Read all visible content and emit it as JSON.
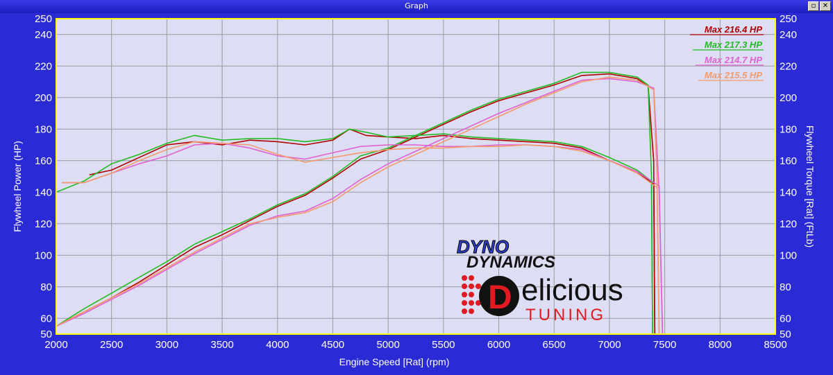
{
  "window": {
    "title": "Graph",
    "restore_glyph": "▫",
    "close_glyph": "✕"
  },
  "chart_data": {
    "type": "line",
    "xlabel": "Engine Speed [Rat] (rpm)",
    "ylabel_left": "Flywheel Power (HP)",
    "ylabel_right": "Flywheel Torque [Rat] (FtLb)",
    "xlim": [
      2000,
      8500
    ],
    "ylim": [
      50,
      250
    ],
    "x_ticks": [
      2000,
      2500,
      3000,
      3500,
      4000,
      4500,
      5000,
      5500,
      6000,
      6500,
      7000,
      7500,
      8000,
      8500
    ],
    "y_ticks": [
      50,
      60,
      80,
      100,
      120,
      140,
      160,
      180,
      200,
      220,
      240,
      250
    ],
    "grid": true,
    "legend_position": "top-right",
    "colors": {
      "plot_bg": "#ddddf3",
      "grid": "#9a9a9a",
      "frame": "#ffff00",
      "outer_bg": "#2b2bd6"
    },
    "series": [
      {
        "name": "Max 216.4 HP",
        "color": "#b00000",
        "power": {
          "x": [
            2000,
            2250,
            2500,
            2750,
            3000,
            3250,
            3500,
            3750,
            4000,
            4250,
            4500,
            4750,
            5000,
            5250,
            5500,
            5750,
            6000,
            6250,
            6500,
            6750,
            7000,
            7250,
            7350,
            7400,
            7410
          ],
          "y": [
            55,
            64,
            73,
            83,
            94,
            105,
            113,
            122,
            131,
            138,
            149,
            161,
            167,
            175,
            183,
            191,
            198,
            203,
            208,
            214,
            215,
            212,
            207,
            160,
            50
          ]
        },
        "torque": {
          "x": [
            2300,
            2500,
            2750,
            3000,
            3250,
            3500,
            3750,
            4000,
            4250,
            4500,
            4650,
            4800,
            5000,
            5250,
            5500,
            5750,
            6000,
            6250,
            6500,
            6750,
            7000,
            7250,
            7400,
            7410
          ],
          "y": [
            151,
            154,
            162,
            170,
            172,
            170,
            173,
            172,
            170,
            173,
            180,
            176,
            175,
            174,
            176,
            174,
            173,
            172,
            171,
            168,
            160,
            153,
            145,
            50
          ]
        }
      },
      {
        "name": "Max 217.3 HP",
        "color": "#22bb22",
        "power": {
          "x": [
            2000,
            2250,
            2500,
            2750,
            3000,
            3250,
            3500,
            3750,
            4000,
            4250,
            4500,
            4750,
            5000,
            5250,
            5500,
            5750,
            6000,
            6250,
            6500,
            6750,
            7000,
            7250,
            7350,
            7380,
            7390
          ],
          "y": [
            55,
            66,
            76,
            86,
            96,
            107,
            115,
            123,
            132,
            139,
            150,
            163,
            168,
            176,
            184,
            192,
            199,
            204,
            209,
            216,
            216,
            213,
            208,
            150,
            50
          ]
        },
        "torque": {
          "x": [
            2000,
            2250,
            2500,
            2750,
            3000,
            3250,
            3500,
            3750,
            4000,
            4250,
            4500,
            4650,
            4800,
            5000,
            5250,
            5500,
            5750,
            6000,
            6250,
            6500,
            6750,
            7000,
            7250,
            7380,
            7390
          ],
          "y": [
            140,
            147,
            158,
            164,
            171,
            176,
            173,
            174,
            174,
            172,
            174,
            180,
            178,
            175,
            176,
            177,
            175,
            174,
            173,
            172,
            169,
            162,
            154,
            147,
            50
          ]
        }
      },
      {
        "name": "Max 214.7 HP",
        "color": "#e060d0",
        "power": {
          "x": [
            2000,
            2250,
            2500,
            2750,
            3000,
            3250,
            3500,
            3750,
            4000,
            4250,
            4500,
            4750,
            5000,
            5250,
            5500,
            5750,
            6000,
            6250,
            6500,
            6750,
            7000,
            7250,
            7400,
            7450,
            7480
          ],
          "y": [
            55,
            63,
            72,
            81,
            91,
            101,
            110,
            119,
            125,
            128,
            136,
            148,
            158,
            166,
            174,
            182,
            190,
            197,
            204,
            211,
            212,
            210,
            206,
            140,
            50
          ]
        },
        "torque": {
          "x": [
            2050,
            2250,
            2500,
            2750,
            3000,
            3250,
            3500,
            3750,
            4000,
            4250,
            4500,
            4750,
            5000,
            5250,
            5500,
            5750,
            6000,
            6250,
            6500,
            6750,
            7000,
            7250,
            7450,
            7480
          ],
          "y": [
            146,
            146,
            152,
            158,
            163,
            170,
            171,
            168,
            163,
            161,
            165,
            169,
            170,
            170,
            169,
            169,
            170,
            170,
            169,
            167,
            160,
            153,
            144,
            50
          ]
        }
      },
      {
        "name": "Max 215.5 HP",
        "color": "#f59a6a",
        "power": {
          "x": [
            2000,
            2250,
            2500,
            2750,
            3000,
            3250,
            3500,
            3750,
            4000,
            4250,
            4500,
            4750,
            5000,
            5250,
            5500,
            5750,
            6000,
            6250,
            6500,
            6750,
            7000,
            7250,
            7400,
            7430,
            7450
          ],
          "y": [
            55,
            64,
            73,
            82,
            92,
            102,
            111,
            120,
            124,
            127,
            134,
            146,
            156,
            164,
            172,
            180,
            188,
            196,
            203,
            210,
            213,
            211,
            205,
            150,
            50
          ]
        },
        "torque": {
          "x": [
            2050,
            2250,
            2500,
            2750,
            3000,
            3250,
            3500,
            3750,
            4000,
            4250,
            4500,
            4750,
            5000,
            5250,
            5500,
            5750,
            6000,
            6250,
            6500,
            6750,
            7000,
            7250,
            7430,
            7450
          ],
          "y": [
            146,
            146,
            152,
            160,
            167,
            172,
            171,
            170,
            164,
            159,
            162,
            165,
            167,
            168,
            168,
            169,
            169,
            170,
            169,
            166,
            160,
            152,
            143,
            50
          ]
        }
      }
    ]
  },
  "logo": {
    "dyno_top": "DYNO",
    "dyno_bottom": "DYNAMICS",
    "brand_initial": "D",
    "brand_word": "elicious",
    "brand_sub": "TUNING"
  }
}
